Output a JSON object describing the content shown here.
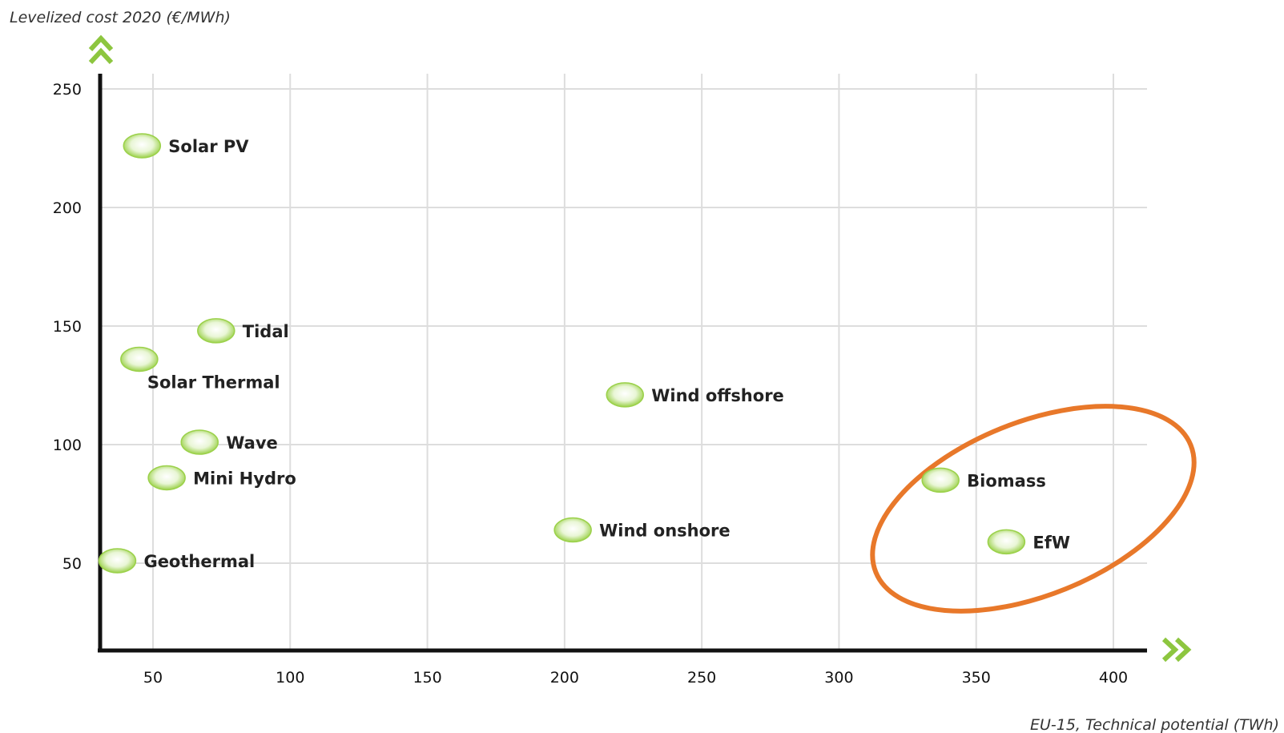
{
  "chart_data": {
    "type": "scatter",
    "title": "",
    "xlabel": "EU-15, Technical potential (TWh)",
    "ylabel": "Levelized cost 2020 (€/MWh)",
    "xlim": [
      30,
      405
    ],
    "ylim": [
      17,
      255
    ],
    "xticks": [
      50,
      100,
      150,
      200,
      250,
      300,
      350,
      400
    ],
    "yticks": [
      50,
      100,
      150,
      200,
      250
    ],
    "grid": true,
    "points": [
      {
        "label": "Solar PV",
        "x": 46,
        "y": 226
      },
      {
        "label": "Tidal",
        "x": 73,
        "y": 148
      },
      {
        "label": "Solar Thermal",
        "x": 45,
        "y": 136
      },
      {
        "label": "Wind offshore",
        "x": 222,
        "y": 121
      },
      {
        "label": "Wave",
        "x": 67,
        "y": 101
      },
      {
        "label": "Mini Hydro",
        "x": 55,
        "y": 86
      },
      {
        "label": "Biomass",
        "x": 337,
        "y": 85
      },
      {
        "label": "Wind onshore",
        "x": 203,
        "y": 64
      },
      {
        "label": "EfW",
        "x": 361,
        "y": 59
      },
      {
        "label": "Geothermal",
        "x": 37,
        "y": 51
      }
    ],
    "highlight": {
      "items": [
        "Biomass",
        "EfW"
      ],
      "shape": "ellipse",
      "color": "#E8782A"
    },
    "colors": {
      "marker": "#9BD14A",
      "axis": "#111111",
      "grid": "#DDDDDD",
      "arrow": "#8DC63F"
    }
  }
}
